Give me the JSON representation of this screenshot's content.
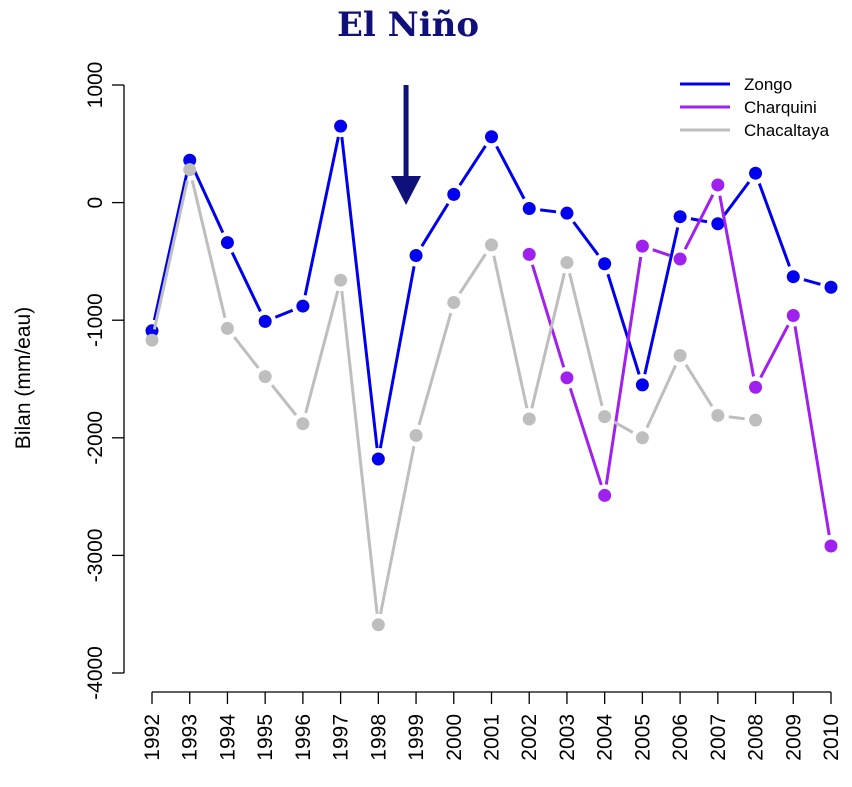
{
  "chart_data": {
    "type": "line",
    "title": "El Niño",
    "xlabel": "",
    "ylabel": "Bilan (mm/eau)",
    "x": [
      "1992",
      "1993",
      "1994",
      "1995",
      "1996",
      "1997",
      "1998",
      "1999",
      "2000",
      "2001",
      "2002",
      "2003",
      "2004",
      "2005",
      "2006",
      "2007",
      "2008",
      "2009",
      "2010"
    ],
    "ylim": [
      -4000,
      1000
    ],
    "yticks": [
      -4000,
      -3000,
      -2000,
      -1000,
      0,
      1000
    ],
    "grid": false,
    "legend_position": "top-right",
    "annotation": {
      "type": "arrow",
      "direction": "down",
      "near_x": "1999",
      "color": "#10107a"
    },
    "series": [
      {
        "name": "Zongo",
        "color": "#0000ee",
        "values": [
          -1090,
          360,
          -340,
          -1010,
          -880,
          650,
          -2180,
          -450,
          70,
          560,
          -50,
          -90,
          -520,
          -1550,
          -120,
          -180,
          250,
          -630,
          -720
        ]
      },
      {
        "name": "Charquini",
        "color": "#a020f0",
        "values": [
          null,
          null,
          null,
          null,
          null,
          null,
          null,
          null,
          null,
          null,
          -440,
          -1490,
          -2490,
          -370,
          -480,
          150,
          -1570,
          -960,
          -2920
        ]
      },
      {
        "name": "Chacaltaya",
        "color": "#bebebe",
        "values": [
          -1170,
          280,
          -1070,
          -1480,
          -1880,
          -660,
          -3590,
          -1980,
          -850,
          -360,
          -1840,
          -510,
          -1820,
          -2000,
          -1300,
          -1810,
          -1850,
          null,
          null
        ]
      }
    ]
  }
}
